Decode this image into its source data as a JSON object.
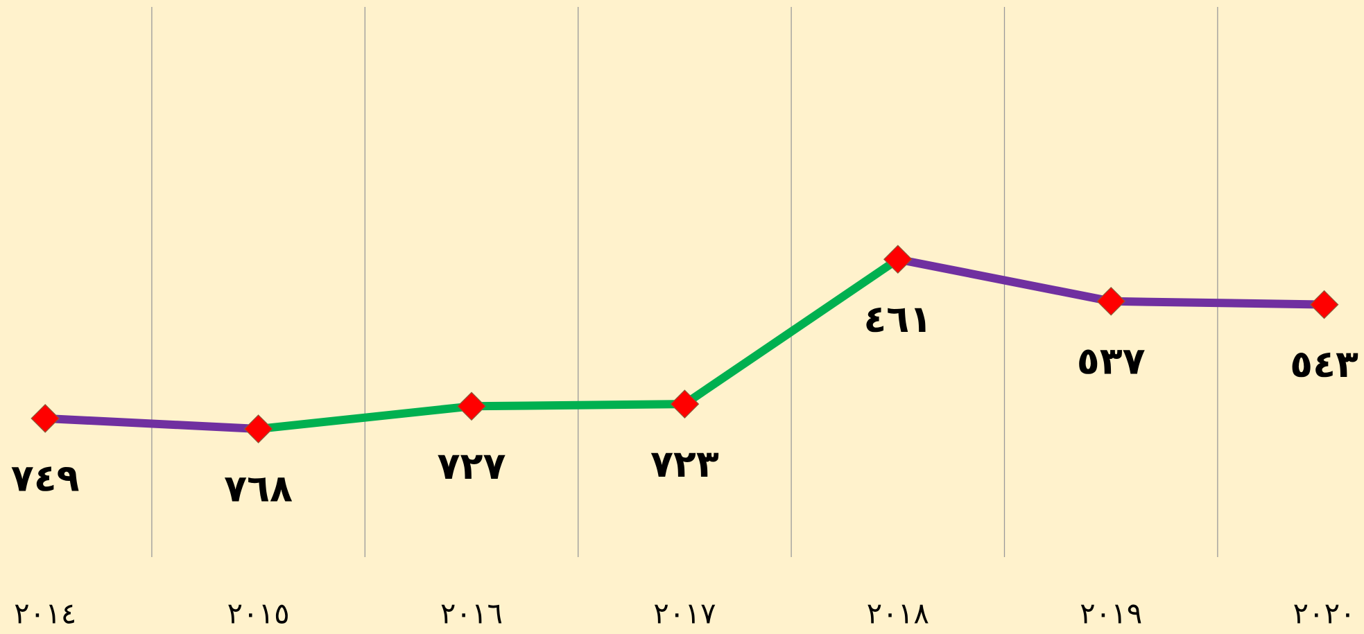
{
  "chart_data": {
    "type": "line",
    "categories": [
      "٢٠١٤",
      "٢٠١٥",
      "٢٠١٦",
      "٢٠١٧",
      "٢٠١٨",
      "٢٠١٩",
      "٢٠٢٠"
    ],
    "values": [
      749,
      768,
      727,
      723,
      461,
      537,
      543
    ],
    "value_labels": [
      "٧٤٩",
      "٧٦٨",
      "٧٢٧",
      "٧٢٣",
      "٤٦١",
      "٥٣٧",
      "٥٤٣"
    ],
    "ylim": [
      1000,
      0
    ],
    "line_colors": {
      "rising": "#7030a0",
      "falling": "#00b050"
    },
    "marker_color": "#ff0000",
    "background": "#fff2cc",
    "grid": true
  }
}
